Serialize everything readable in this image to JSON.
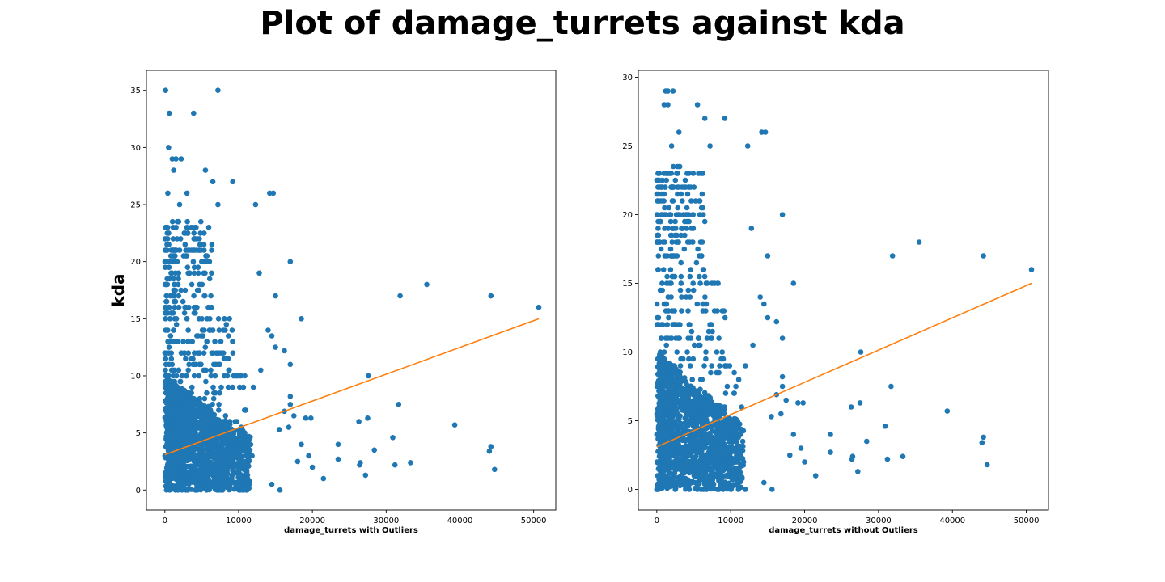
{
  "suptitle": "Plot of damage_turrets against kda",
  "colors": {
    "points": "#1f77b4",
    "fit_line": "#ff7f0e",
    "axes": "#000000"
  },
  "chart_data": [
    {
      "type": "scatter",
      "title": "",
      "xlabel": "damage_turrets with Outliers",
      "ylabel": "kda",
      "xlim": [
        -2500,
        53000
      ],
      "ylim": [
        -1.75,
        36.75
      ],
      "xticks": [
        0,
        10000,
        20000,
        30000,
        40000,
        50000
      ],
      "yticks": [
        0,
        5,
        10,
        15,
        20,
        25,
        30,
        35
      ],
      "dense_region": {
        "x_range": [
          0,
          12000
        ],
        "y_range": [
          0,
          10
        ],
        "description": "heavy overplotting of points"
      },
      "points": [
        [
          100,
          35
        ],
        [
          7200,
          35
        ],
        [
          600,
          33
        ],
        [
          3900,
          33
        ],
        [
          500,
          30
        ],
        [
          1000,
          29
        ],
        [
          1500,
          29
        ],
        [
          2200,
          29
        ],
        [
          1200,
          28
        ],
        [
          5500,
          28
        ],
        [
          6500,
          27
        ],
        [
          9200,
          27
        ],
        [
          14200,
          26
        ],
        [
          14700,
          26
        ],
        [
          400,
          26
        ],
        [
          3000,
          26
        ],
        [
          12300,
          25
        ],
        [
          7200,
          25
        ],
        [
          2000,
          25
        ],
        [
          17000,
          20
        ],
        [
          12800,
          19
        ],
        [
          18500,
          15
        ],
        [
          15000,
          17
        ],
        [
          35500,
          18
        ],
        [
          31900,
          17
        ],
        [
          44200,
          17
        ],
        [
          50700,
          16
        ],
        [
          14000,
          14
        ],
        [
          14500,
          13.5
        ],
        [
          15000,
          12.5
        ],
        [
          16200,
          12.2
        ],
        [
          17000,
          11
        ],
        [
          13000,
          10.5
        ],
        [
          27600,
          10
        ],
        [
          31700,
          7.5
        ],
        [
          27500,
          6.3
        ],
        [
          26300,
          6
        ],
        [
          30900,
          4.6
        ],
        [
          39300,
          5.7
        ],
        [
          23500,
          4
        ],
        [
          28400,
          3.5
        ],
        [
          44200,
          3.8
        ],
        [
          44000,
          3.4
        ],
        [
          23500,
          2.7
        ],
        [
          26400,
          2.2
        ],
        [
          26500,
          2.4
        ],
        [
          31200,
          2.2
        ],
        [
          33300,
          2.4
        ],
        [
          27200,
          1.3
        ],
        [
          44700,
          1.8
        ],
        [
          21500,
          1
        ],
        [
          19100,
          6.3
        ],
        [
          19800,
          6.3
        ],
        [
          17500,
          6.5
        ],
        [
          18500,
          4
        ],
        [
          17000,
          8.2
        ],
        [
          17000,
          7.5
        ],
        [
          16200,
          6.9
        ],
        [
          16800,
          5.5
        ],
        [
          15500,
          5.3
        ],
        [
          19500,
          3
        ],
        [
          20000,
          2
        ],
        [
          18000,
          2.5
        ],
        [
          15600,
          0
        ],
        [
          14500,
          0.5
        ]
      ],
      "fit_line": {
        "x": [
          0,
          50700
        ],
        "y": [
          3.1,
          15
        ]
      }
    },
    {
      "type": "scatter",
      "title": "",
      "xlabel": "damage_turrets without Outliers",
      "ylabel": "",
      "xlim": [
        -2500,
        53000
      ],
      "ylim": [
        -1.5,
        30.5
      ],
      "xticks": [
        0,
        10000,
        20000,
        30000,
        40000,
        50000
      ],
      "yticks": [
        0,
        5,
        10,
        15,
        20,
        25,
        30
      ],
      "dense_region": {
        "x_range": [
          0,
          12000
        ],
        "y_range": [
          0,
          10
        ],
        "description": "heavy overplotting of points"
      },
      "points": [
        [
          1200,
          29
        ],
        [
          1500,
          29
        ],
        [
          2200,
          29
        ],
        [
          1000,
          28
        ],
        [
          1500,
          28
        ],
        [
          5500,
          28
        ],
        [
          6500,
          27
        ],
        [
          9200,
          27
        ],
        [
          14200,
          26
        ],
        [
          14700,
          26
        ],
        [
          3000,
          26
        ],
        [
          12300,
          25
        ],
        [
          7200,
          25
        ],
        [
          2000,
          25
        ],
        [
          17000,
          20
        ],
        [
          12800,
          19
        ],
        [
          18500,
          15
        ],
        [
          15000,
          17
        ],
        [
          35500,
          18
        ],
        [
          31900,
          17
        ],
        [
          44200,
          17
        ],
        [
          50700,
          16
        ],
        [
          14000,
          14
        ],
        [
          14500,
          13.5
        ],
        [
          15000,
          12.5
        ],
        [
          16200,
          12.2
        ],
        [
          17000,
          11
        ],
        [
          13000,
          10.5
        ],
        [
          27600,
          10
        ],
        [
          31700,
          7.5
        ],
        [
          27500,
          6.3
        ],
        [
          26300,
          6
        ],
        [
          30900,
          4.6
        ],
        [
          39300,
          5.7
        ],
        [
          23500,
          4
        ],
        [
          28400,
          3.5
        ],
        [
          44200,
          3.8
        ],
        [
          44000,
          3.4
        ],
        [
          23500,
          2.7
        ],
        [
          26400,
          2.2
        ],
        [
          26500,
          2.4
        ],
        [
          31200,
          2.2
        ],
        [
          33300,
          2.4
        ],
        [
          27200,
          1.3
        ],
        [
          44700,
          1.8
        ],
        [
          21500,
          1
        ],
        [
          19100,
          6.3
        ],
        [
          19800,
          6.3
        ],
        [
          17500,
          6.5
        ],
        [
          18500,
          4
        ],
        [
          17000,
          8.2
        ],
        [
          17000,
          7.5
        ],
        [
          16200,
          6.9
        ],
        [
          16800,
          5.5
        ],
        [
          15500,
          5.3
        ],
        [
          19500,
          3
        ],
        [
          20000,
          2
        ],
        [
          18000,
          2.5
        ],
        [
          15600,
          0
        ],
        [
          14500,
          0.5
        ]
      ],
      "fit_line": {
        "x": [
          0,
          50700
        ],
        "y": [
          3.1,
          15
        ]
      }
    }
  ]
}
